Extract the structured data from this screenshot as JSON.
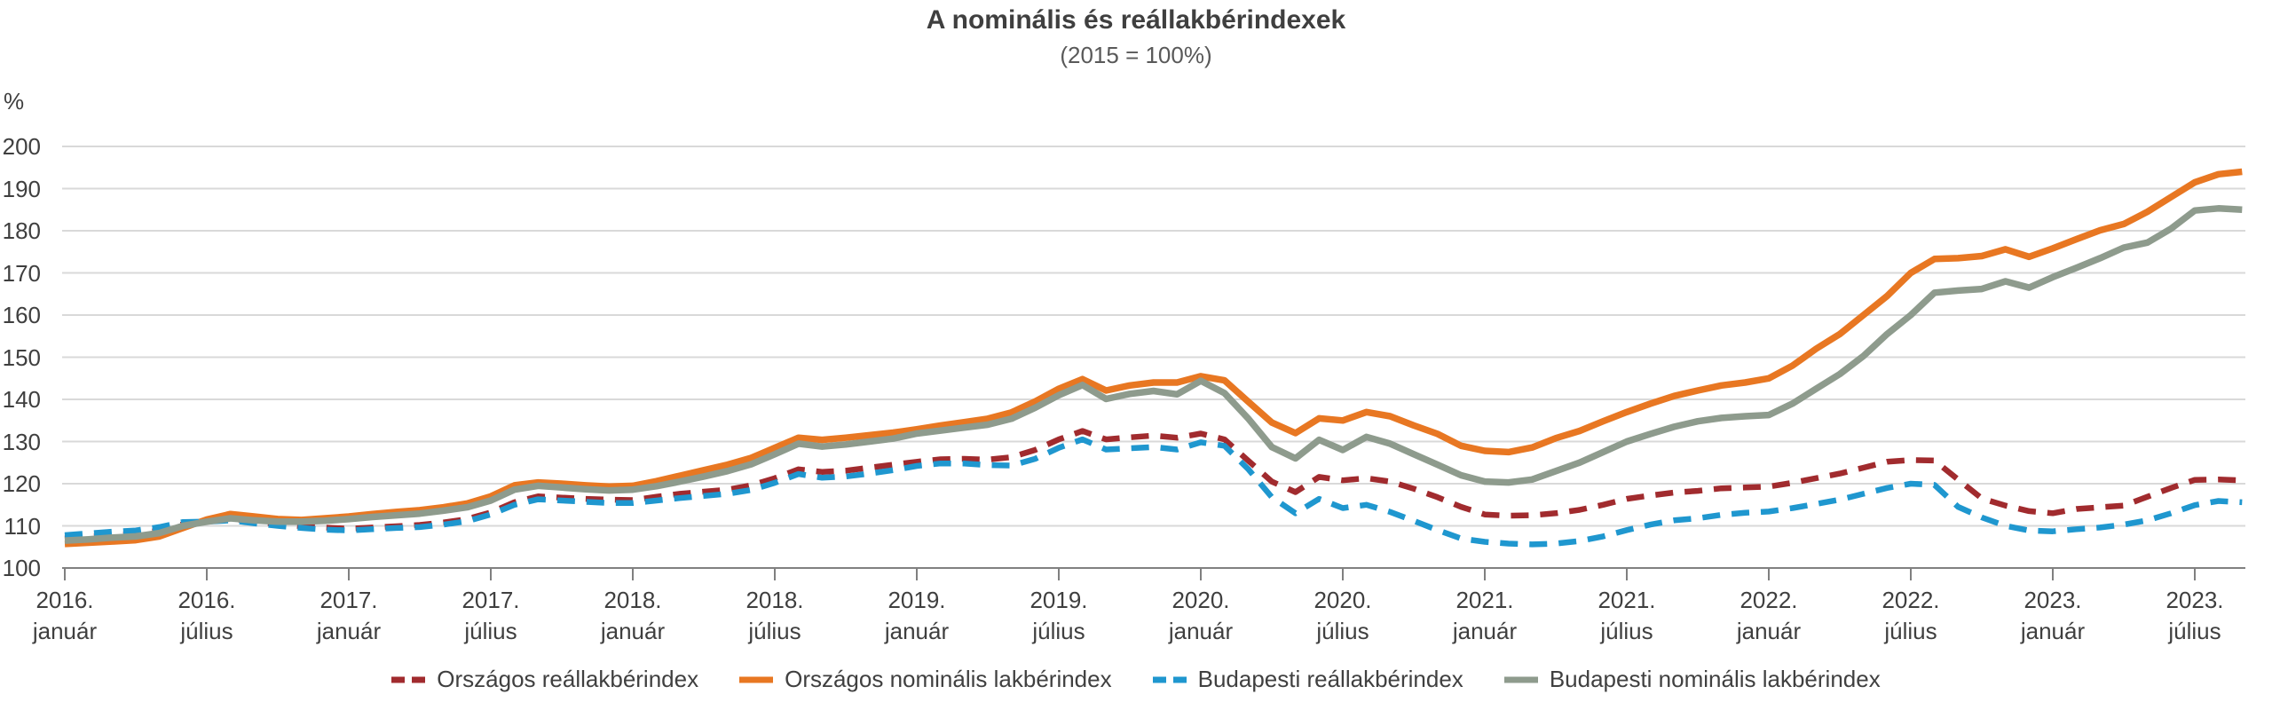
{
  "chart_data": {
    "type": "line",
    "title": "A nominális és reállakbérindexek",
    "subtitle": "(2015 = 100%)",
    "y_unit": "%",
    "ylim": [
      100,
      200
    ],
    "y_ticks": [
      100,
      110,
      120,
      130,
      140,
      150,
      160,
      170,
      180,
      190,
      200
    ],
    "grid": "horizontal",
    "legend_position": "bottom",
    "style": {
      "grid_color": "#d9d9d9",
      "axis_color": "#808080",
      "title_color": "#3f3f3f",
      "subtitle_color": "#595959",
      "label_color": "#3f3f3f",
      "legend_text_color": "#404040",
      "background": "#ffffff"
    },
    "x_ticks": [
      {
        "year": "2016.",
        "month": "január"
      },
      {
        "year": "2016.",
        "month": "július"
      },
      {
        "year": "2017.",
        "month": "január"
      },
      {
        "year": "2017.",
        "month": "július"
      },
      {
        "year": "2018.",
        "month": "január"
      },
      {
        "year": "2018.",
        "month": "július"
      },
      {
        "year": "2019.",
        "month": "január"
      },
      {
        "year": "2019.",
        "month": "július"
      },
      {
        "year": "2020.",
        "month": "január"
      },
      {
        "year": "2020.",
        "month": "július"
      },
      {
        "year": "2021.",
        "month": "január"
      },
      {
        "year": "2021.",
        "month": "július"
      },
      {
        "year": "2022.",
        "month": "január"
      },
      {
        "year": "2022.",
        "month": "július"
      },
      {
        "year": "2023.",
        "month": "január"
      },
      {
        "year": "2023.",
        "month": "július"
      }
    ],
    "x": [
      "2016-01",
      "2016-02",
      "2016-03",
      "2016-04",
      "2016-05",
      "2016-06",
      "2016-07",
      "2016-08",
      "2016-09",
      "2016-10",
      "2016-11",
      "2016-12",
      "2017-01",
      "2017-02",
      "2017-03",
      "2017-04",
      "2017-05",
      "2017-06",
      "2017-07",
      "2017-08",
      "2017-09",
      "2017-10",
      "2017-11",
      "2017-12",
      "2018-01",
      "2018-02",
      "2018-03",
      "2018-04",
      "2018-05",
      "2018-06",
      "2018-07",
      "2018-08",
      "2018-09",
      "2018-10",
      "2018-11",
      "2018-12",
      "2019-01",
      "2019-02",
      "2019-03",
      "2019-04",
      "2019-05",
      "2019-06",
      "2019-07",
      "2019-08",
      "2019-09",
      "2019-10",
      "2019-11",
      "2019-12",
      "2020-01",
      "2020-02",
      "2020-03",
      "2020-04",
      "2020-05",
      "2020-06",
      "2020-07",
      "2020-08",
      "2020-09",
      "2020-10",
      "2020-11",
      "2020-12",
      "2021-01",
      "2021-02",
      "2021-03",
      "2021-04",
      "2021-05",
      "2021-06",
      "2021-07",
      "2021-08",
      "2021-09",
      "2021-10",
      "2021-11",
      "2021-12",
      "2022-01",
      "2022-02",
      "2022-03",
      "2022-04",
      "2022-05",
      "2022-06",
      "2022-07",
      "2022-08",
      "2022-09",
      "2022-10",
      "2022-11",
      "2022-12",
      "2023-01",
      "2023-02",
      "2023-03",
      "2023-04",
      "2023-05",
      "2023-06",
      "2023-07",
      "2023-08",
      "2023-09"
    ],
    "series": [
      {
        "id": "orszagos-real",
        "name": "Országos reállakbérindex",
        "color": "#a12b2e",
        "dashed": true,
        "values": [
          107.0,
          107.4,
          107.8,
          108.1,
          108.9,
          110.4,
          111.2,
          111.7,
          111.0,
          110.4,
          109.9,
          109.6,
          109.3,
          109.6,
          109.9,
          110.2,
          110.8,
          111.6,
          113.2,
          115.6,
          117.0,
          116.7,
          116.4,
          116.2,
          116.1,
          116.9,
          117.6,
          118.1,
          118.6,
          119.6,
          121.3,
          123.4,
          122.8,
          123.1,
          123.8,
          124.5,
          125.2,
          125.8,
          125.9,
          125.7,
          126.3,
          128.0,
          130.5,
          132.5,
          130.5,
          131.0,
          131.4,
          130.9,
          131.9,
          130.5,
          125.5,
          120.5,
          118.0,
          121.6,
          120.8,
          121.3,
          120.5,
          118.8,
          116.8,
          114.5,
          112.7,
          112.4,
          112.5,
          113.0,
          113.8,
          115.0,
          116.4,
          117.2,
          117.9,
          118.3,
          118.9,
          119.1,
          119.3,
          120.2,
          121.3,
          122.4,
          123.8,
          125.2,
          125.6,
          125.5,
          121.0,
          116.5,
          114.8,
          113.5,
          113.0,
          114.0,
          114.4,
          114.8,
          116.9,
          119.0,
          120.9,
          121.0,
          120.8
        ]
      },
      {
        "id": "orszagos-nominal",
        "name": "Országos nominális lakbérindex",
        "color": "#e87722",
        "dashed": false,
        "values": [
          105.7,
          106.0,
          106.3,
          106.6,
          107.5,
          109.5,
          111.5,
          112.8,
          112.2,
          111.6,
          111.4,
          111.8,
          112.2,
          112.8,
          113.3,
          113.7,
          114.4,
          115.3,
          117.0,
          119.6,
          120.3,
          120.0,
          119.6,
          119.3,
          119.5,
          120.6,
          121.9,
          123.2,
          124.5,
          126.1,
          128.5,
          130.9,
          130.4,
          130.9,
          131.5,
          132.1,
          132.9,
          133.8,
          134.6,
          135.4,
          136.9,
          139.5,
          142.5,
          144.8,
          142.1,
          143.3,
          144.0,
          144.0,
          145.5,
          144.5,
          139.5,
          134.5,
          132.0,
          135.5,
          135.0,
          137.0,
          136.0,
          133.8,
          131.8,
          129.0,
          127.8,
          127.5,
          128.6,
          130.8,
          132.5,
          134.8,
          137.0,
          139.0,
          140.8,
          142.1,
          143.3,
          144.0,
          145.0,
          148.0,
          152.0,
          155.5,
          160.0,
          164.5,
          170.0,
          173.3,
          173.5,
          174.0,
          175.6,
          173.8,
          175.8,
          178.0,
          180.1,
          181.6,
          184.5,
          188.0,
          191.5,
          193.4,
          194.0
        ]
      },
      {
        "id": "budapesti-real",
        "name": "Budapesti reállakbérindex",
        "color": "#1f97cf",
        "dashed": true,
        "values": [
          107.8,
          108.2,
          108.6,
          108.9,
          109.7,
          110.9,
          111.0,
          111.3,
          110.6,
          110.0,
          109.5,
          109.1,
          108.9,
          109.2,
          109.5,
          109.7,
          110.3,
          111.1,
          112.7,
          115.0,
          116.3,
          116.0,
          115.7,
          115.4,
          115.4,
          116.0,
          116.6,
          117.1,
          117.6,
          118.5,
          120.2,
          122.3,
          121.4,
          121.7,
          122.4,
          123.2,
          124.2,
          124.8,
          124.8,
          124.4,
          124.3,
          125.9,
          128.5,
          130.5,
          128.1,
          128.4,
          128.7,
          128.1,
          129.8,
          129.0,
          123.5,
          116.8,
          113.0,
          116.4,
          114.2,
          115.0,
          113.3,
          111.2,
          109.0,
          107.0,
          106.2,
          105.8,
          105.6,
          105.8,
          106.4,
          107.5,
          109.0,
          110.3,
          111.3,
          111.8,
          112.6,
          113.1,
          113.4,
          114.2,
          115.2,
          116.2,
          117.6,
          119.0,
          120.0,
          119.7,
          114.5,
          112.0,
          110.0,
          108.9,
          108.7,
          109.2,
          109.6,
          110.3,
          111.3,
          113.0,
          114.9,
          115.9,
          115.6
        ]
      },
      {
        "id": "budapesti-nominal",
        "name": "Budapesti nominális lakbérindex",
        "color": "#8e9b8d",
        "dashed": false,
        "values": [
          106.5,
          106.8,
          107.2,
          107.5,
          108.3,
          110.0,
          111.0,
          111.8,
          111.3,
          111.0,
          111.0,
          111.2,
          111.6,
          112.1,
          112.5,
          112.9,
          113.6,
          114.4,
          116.0,
          118.6,
          119.5,
          119.1,
          118.7,
          118.4,
          118.6,
          119.4,
          120.5,
          121.7,
          123.0,
          124.6,
          127.0,
          129.5,
          128.8,
          129.3,
          130.0,
          130.7,
          131.9,
          132.6,
          133.3,
          134.0,
          135.4,
          138.0,
          141.0,
          143.4,
          140.1,
          141.3,
          142.0,
          141.2,
          144.4,
          141.5,
          135.5,
          128.7,
          126.0,
          130.4,
          128.0,
          131.1,
          129.5,
          127.0,
          124.5,
          122.0,
          120.5,
          120.3,
          121.0,
          123.0,
          125.0,
          127.5,
          130.0,
          131.8,
          133.5,
          134.8,
          135.6,
          136.0,
          136.3,
          139.0,
          142.5,
          146.0,
          150.3,
          155.5,
          160.0,
          165.3,
          165.8,
          166.2,
          168.0,
          166.5,
          169.0,
          171.2,
          173.5,
          176.0,
          177.2,
          180.5,
          184.8,
          185.3,
          185.0
        ]
      }
    ]
  }
}
